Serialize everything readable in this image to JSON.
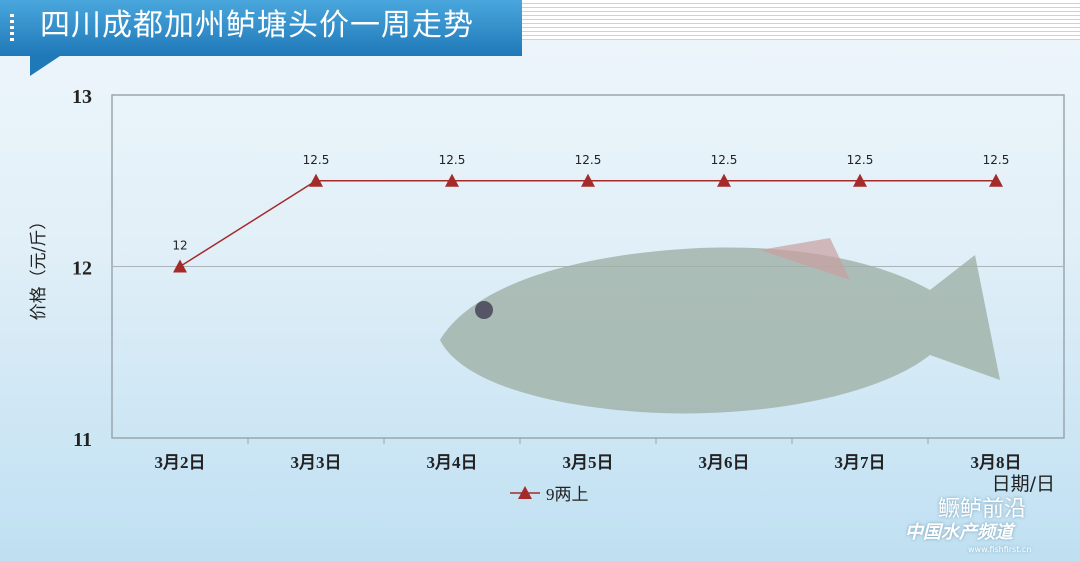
{
  "title": "四川成都加州鲈塘头价一周走势",
  "chart_data": {
    "type": "line",
    "title": "四川成都加州鲈塘头价一周走势",
    "xlabel": "日期/日",
    "ylabel": "价格（元/斤）",
    "categories": [
      "3月2日",
      "3月3日",
      "3月4日",
      "3月5日",
      "3月6日",
      "3月7日",
      "3月8日"
    ],
    "series": [
      {
        "name": "9两上",
        "values": [
          12,
          12.5,
          12.5,
          12.5,
          12.5,
          12.5,
          12.5
        ],
        "color": "#a52a2a",
        "marker": "triangle"
      }
    ],
    "ylim": [
      11,
      13
    ],
    "yticks": [
      11,
      12,
      13
    ],
    "grid": true,
    "legend": "bottom-center"
  },
  "watermark": {
    "name": "鳜鲈前沿",
    "channel": "中国水产频道",
    "url": "www.fishfirst.cn"
  }
}
